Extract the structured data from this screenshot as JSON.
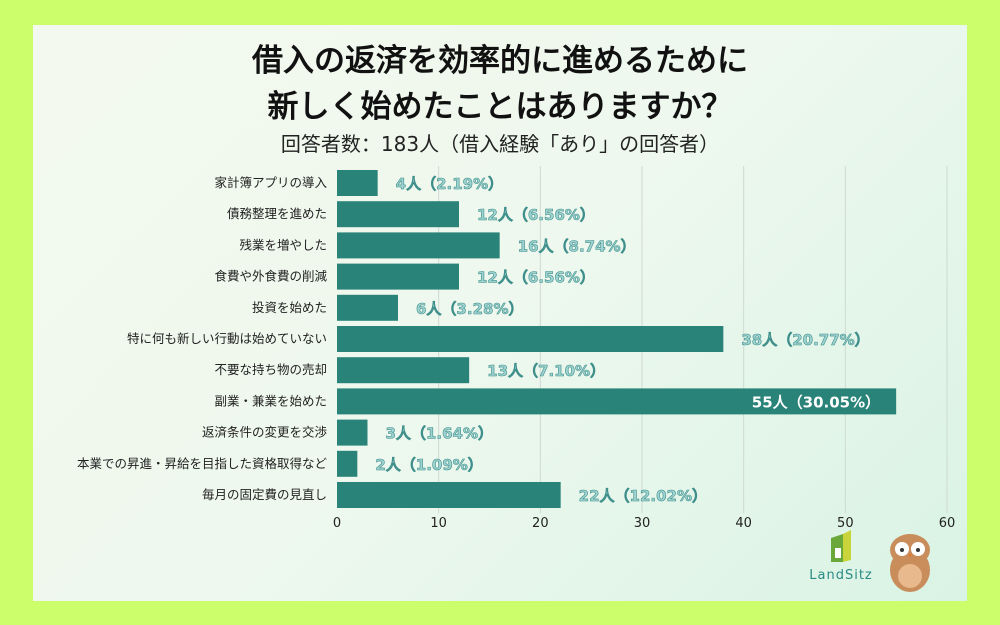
{
  "title_line1": "借入の返済を効率的に進めるために",
  "title_line2": "新しく始めたことはありますか？",
  "subtitle": "回答者数：183人（借入経験「あり」の回答者）",
  "logo": {
    "text": "LandSitz"
  },
  "colors": {
    "bar": "#2a8378",
    "background": "#ccfd6a"
  },
  "chart_data": {
    "type": "bar",
    "orientation": "horizontal",
    "categories": [
      "家計簿アプリの導入",
      "債務整理を進めた",
      "残業を増やした",
      "食費や外食費の削減",
      "投資を始めた",
      "特に何も新しい行動は始めていない",
      "不要な持ち物の売却",
      "副業・兼業を始めた",
      "返済条件の変更を交渉",
      "本業での昇進・昇給を目指した資格取得など",
      "毎月の固定費の見直し"
    ],
    "values": [
      4,
      12,
      16,
      12,
      6,
      38,
      13,
      55,
      3,
      2,
      22
    ],
    "data_labels": [
      "4人（2.19%）",
      "12人（6.56%）",
      "16人（8.74%）",
      "12人（6.56%）",
      "6人（3.28%）",
      "38人（20.77%）",
      "13人（7.10%）",
      "55人（30.05%）",
      "3人（1.64%）",
      "2人（1.09%）",
      "22人（12.02%）"
    ],
    "xlim": [
      0,
      60
    ],
    "xticks": [
      "0",
      "10",
      "20",
      "30",
      "40",
      "50",
      "60"
    ],
    "grid": true,
    "legend": "none"
  }
}
